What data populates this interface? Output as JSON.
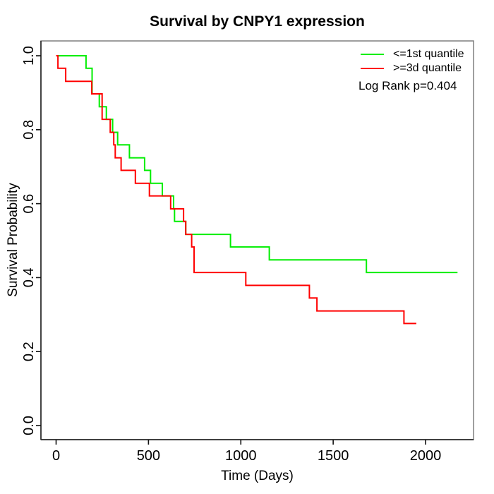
{
  "figure": {
    "background": "#ffffff",
    "frame_color": "#7f7f7f",
    "axis_color": "#2e2e2e",
    "text_color": "#000000"
  },
  "chart_data": {
    "type": "line",
    "subtype": "kaplan-meier-step",
    "title": "Survival by CNPY1 expression",
    "xlabel": "Time (Days)",
    "ylabel": "Survival Probability",
    "xlim": [
      -82,
      2260
    ],
    "ylim": [
      -0.04,
      1.04
    ],
    "grid": false,
    "legend_position": "top-right",
    "annotation": "Log Rank p=0.404",
    "xticks": [
      {
        "value": 0,
        "label": "0"
      },
      {
        "value": 500,
        "label": "500"
      },
      {
        "value": 1000,
        "label": "1000"
      },
      {
        "value": 1500,
        "label": "1500"
      },
      {
        "value": 2000,
        "label": "2000"
      }
    ],
    "yticks": [
      {
        "value": 0.0,
        "label": "0.0"
      },
      {
        "value": 0.2,
        "label": "0.2"
      },
      {
        "value": 0.4,
        "label": "0.4"
      },
      {
        "value": 0.6,
        "label": "0.6"
      },
      {
        "value": 0.8,
        "label": "0.8"
      },
      {
        "value": 1.0,
        "label": "1.0"
      }
    ],
    "series": [
      {
        "id": "1st-quantile",
        "name": "<=1st quantile",
        "color": "#00ee00",
        "points": [
          [
            0,
            1.0
          ],
          [
            162,
            0.966
          ],
          [
            195,
            0.897
          ],
          [
            234,
            0.862
          ],
          [
            272,
            0.828
          ],
          [
            306,
            0.793
          ],
          [
            333,
            0.759
          ],
          [
            397,
            0.724
          ],
          [
            479,
            0.69
          ],
          [
            511,
            0.655
          ],
          [
            575,
            0.621
          ],
          [
            636,
            0.586
          ],
          [
            641,
            0.552
          ],
          [
            702,
            0.517
          ],
          [
            944,
            0.483
          ],
          [
            1154,
            0.448
          ],
          [
            1680,
            0.414
          ],
          [
            2173,
            0.414
          ]
        ]
      },
      {
        "id": "3d-quantile",
        "name": ">=3d quantile",
        "color": "#ff0000",
        "points": [
          [
            0,
            1.0
          ],
          [
            10,
            0.966
          ],
          [
            52,
            0.931
          ],
          [
            193,
            0.897
          ],
          [
            249,
            0.828
          ],
          [
            293,
            0.793
          ],
          [
            312,
            0.759
          ],
          [
            320,
            0.724
          ],
          [
            352,
            0.69
          ],
          [
            429,
            0.655
          ],
          [
            505,
            0.621
          ],
          [
            620,
            0.586
          ],
          [
            690,
            0.552
          ],
          [
            702,
            0.517
          ],
          [
            734,
            0.483
          ],
          [
            747,
            0.414
          ],
          [
            1027,
            0.379
          ],
          [
            1371,
            0.345
          ],
          [
            1412,
            0.31
          ],
          [
            1883,
            0.276
          ],
          [
            1950,
            0.276
          ]
        ]
      }
    ]
  }
}
